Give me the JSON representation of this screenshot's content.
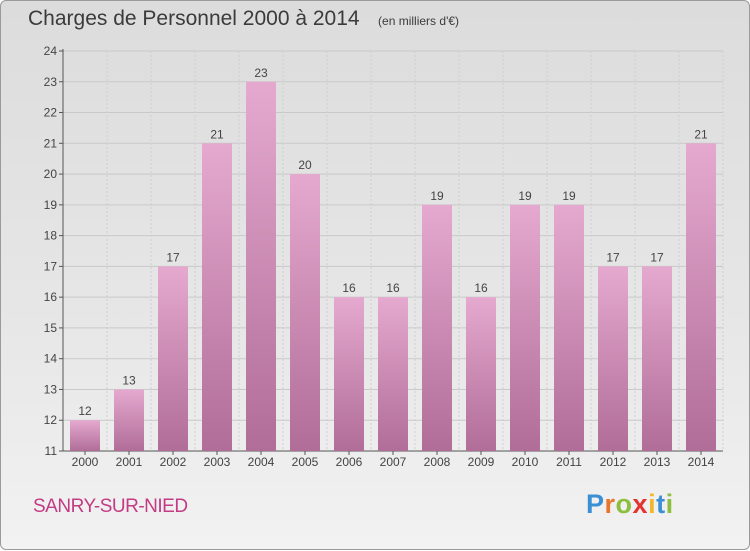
{
  "header": {
    "title": "Charges de Personnel 2000 à 2014",
    "subtitle": "(en milliers d'€)"
  },
  "footer": {
    "commune": "SANRY-SUR-NIED",
    "logo_text": "Proxiti"
  },
  "colors": {
    "bar_top": "#e5a9cf",
    "bar_bottom": "#b06d98",
    "commune_text": "#c33b84"
  },
  "chart_data": {
    "type": "bar",
    "title": "Charges de Personnel 2000 à 2014",
    "subtitle": "(en milliers d'€)",
    "categories": [
      "2000",
      "2001",
      "2002",
      "2003",
      "2004",
      "2005",
      "2006",
      "2007",
      "2008",
      "2009",
      "2010",
      "2011",
      "2012",
      "2013",
      "2014"
    ],
    "values": [
      12,
      13,
      17,
      21,
      23,
      20,
      16,
      16,
      19,
      16,
      19,
      19,
      17,
      17,
      21
    ],
    "ylim": [
      11,
      24
    ],
    "yticks": [
      11,
      12,
      13,
      14,
      15,
      16,
      17,
      18,
      19,
      20,
      21,
      22,
      23,
      24
    ],
    "grid": true,
    "data_labels": true
  }
}
